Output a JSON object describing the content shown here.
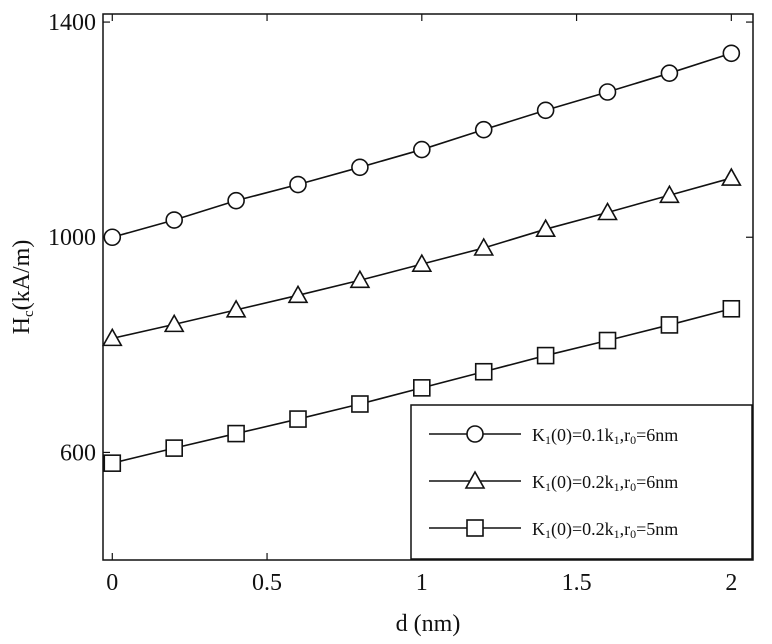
{
  "chart_data": {
    "type": "line",
    "xlabel": "d (nm)",
    "ylabel": {
      "prefix": "H",
      "sub": "c",
      "suffix": "(kA/m)"
    },
    "xlim": [
      -0.03,
      2.07
    ],
    "ylim": [
      400,
      1415
    ],
    "x_ticks": [
      {
        "value": 0,
        "label": "0"
      },
      {
        "value": 0.5,
        "label": "0.5"
      },
      {
        "value": 1,
        "label": "1"
      },
      {
        "value": 1.5,
        "label": "1.5"
      },
      {
        "value": 2,
        "label": "2"
      }
    ],
    "y_ticks": [
      {
        "value": 600,
        "label": "600"
      },
      {
        "value": 1000,
        "label": "1000"
      },
      {
        "value": 1400,
        "label": "1400"
      }
    ],
    "grid": false,
    "legend_position": "bottom-right",
    "x": [
      0,
      0.2,
      0.4,
      0.6,
      0.8,
      1.0,
      1.2,
      1.4,
      1.6,
      1.8,
      2.0
    ],
    "series": [
      {
        "marker": "circle",
        "legend": [
          {
            "t": "K"
          },
          {
            "t": "1",
            "sub": true
          },
          {
            "t": "(0)=0.1k"
          },
          {
            "t": "1",
            "sub": true
          },
          {
            "t": ",r"
          },
          {
            "t": "0",
            "sub": true
          },
          {
            "t": "=6nm"
          }
        ],
        "values": [
          1000,
          1032,
          1068,
          1098,
          1130,
          1163,
          1200,
          1236,
          1270,
          1305,
          1342
        ]
      },
      {
        "marker": "triangle",
        "legend": [
          {
            "t": "K"
          },
          {
            "t": "1",
            "sub": true
          },
          {
            "t": "(0)=0.2k"
          },
          {
            "t": "1",
            "sub": true
          },
          {
            "t": ",r"
          },
          {
            "t": "0",
            "sub": true
          },
          {
            "t": "=6nm"
          }
        ],
        "values": [
          812,
          838,
          865,
          892,
          920,
          950,
          980,
          1015,
          1046,
          1078,
          1110
        ]
      },
      {
        "marker": "square",
        "legend": [
          {
            "t": "K"
          },
          {
            "t": "1",
            "sub": true
          },
          {
            "t": "(0)=0.2k"
          },
          {
            "t": "1",
            "sub": true
          },
          {
            "t": ",r"
          },
          {
            "t": "0",
            "sub": true
          },
          {
            "t": "=5nm"
          }
        ],
        "values": [
          580,
          608,
          635,
          662,
          690,
          720,
          750,
          780,
          808,
          837,
          867
        ]
      }
    ]
  }
}
